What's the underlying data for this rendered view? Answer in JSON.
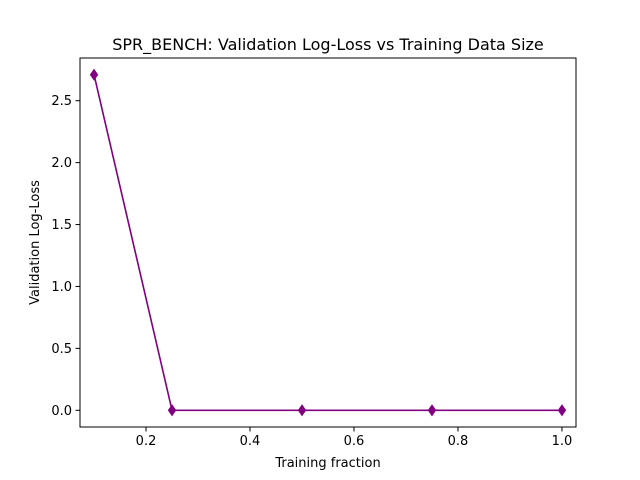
{
  "chart_data": {
    "type": "line",
    "title": "SPR_BENCH: Validation Log-Loss vs Training Data Size",
    "xlabel": "Training fraction",
    "ylabel": "Validation Log-Loss",
    "x": [
      0.1,
      0.25,
      0.5,
      0.75,
      1.0
    ],
    "series": [
      {
        "values": [
          2.71,
          0.0,
          0.0,
          0.0,
          0.0
        ],
        "color": "#800080",
        "marker": "diamond"
      }
    ],
    "xlim": [
      0.073,
      1.027
    ],
    "ylim": [
      -0.135,
      2.845
    ],
    "xticks": [
      0.2,
      0.4,
      0.6,
      0.8,
      1.0
    ],
    "xtick_labels": [
      "0.2",
      "0.4",
      "0.6",
      "0.8",
      "1.0"
    ],
    "yticks": [
      0.0,
      0.5,
      1.0,
      1.5,
      2.0,
      2.5
    ],
    "ytick_labels": [
      "0.0",
      "0.5",
      "1.0",
      "1.5",
      "2.0",
      "2.5"
    ],
    "grid": false
  }
}
